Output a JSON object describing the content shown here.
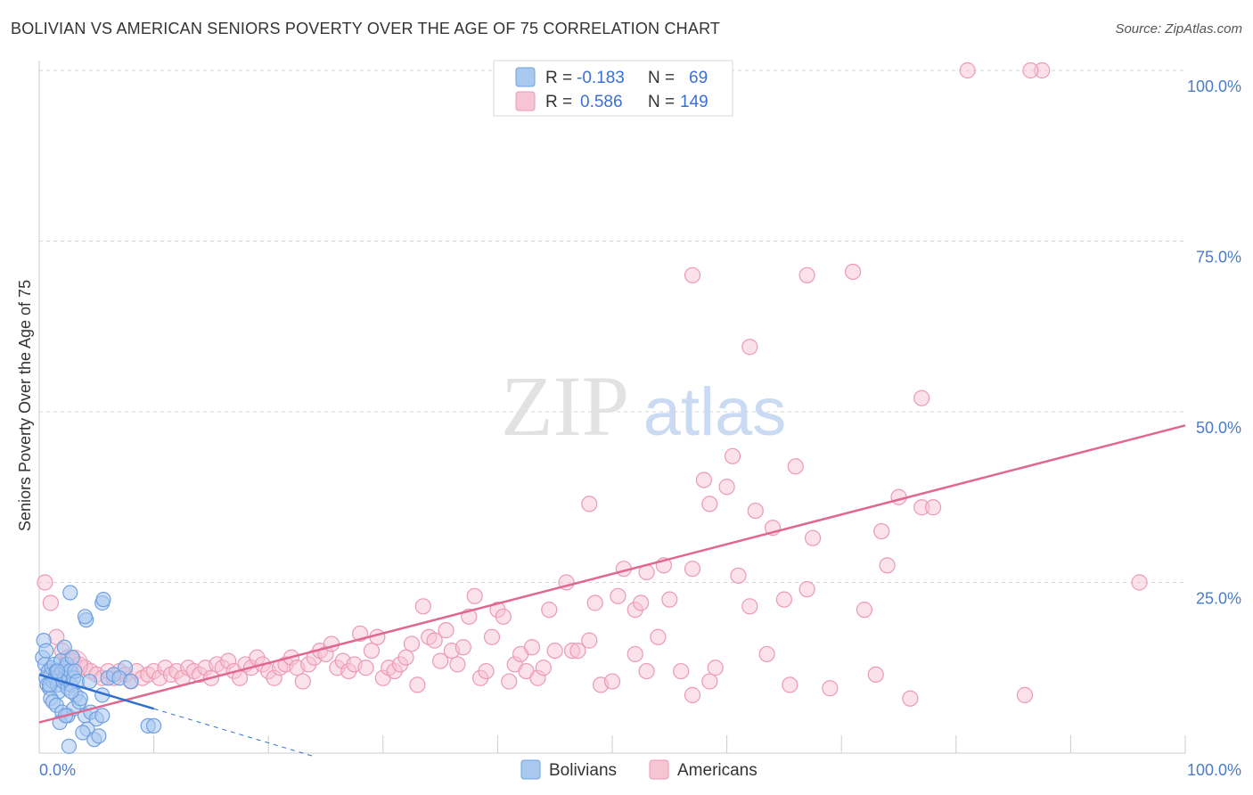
{
  "title": "BOLIVIAN VS AMERICAN SENIORS POVERTY OVER THE AGE OF 75 CORRELATION CHART",
  "source": "Source: ZipAtlas.com",
  "watermark": {
    "zip": "ZIP",
    "atlas": "atlas"
  },
  "colors": {
    "blue_fill": "#a9c8f0",
    "blue_stroke": "#6fa0e0",
    "blue_line": "#2f6fd0",
    "pink_fill": "#f7c4d4",
    "pink_stroke": "#ec9ab4",
    "pink_line": "#e06890",
    "grid": "#d5d5d5",
    "tick_text": "#4a7cc9"
  },
  "legend": {
    "rows": [
      {
        "r_label": "R =",
        "r_value": "-0.183",
        "n_label": "N =",
        "n_value": "69"
      },
      {
        "r_label": "R =",
        "r_value": "0.586",
        "n_label": "N =",
        "n_value": "149"
      }
    ]
  },
  "bottom_legend": [
    "Bolivians",
    "Americans"
  ],
  "chart_data": {
    "type": "scatter",
    "title": "BOLIVIAN VS AMERICAN SENIORS POVERTY OVER THE AGE OF 75 CORRELATION CHART",
    "xlabel": "",
    "ylabel": "Seniors Poverty Over the Age of 75",
    "xlim": [
      0,
      100
    ],
    "ylim": [
      0,
      100
    ],
    "x_tick_labels": [
      "0.0%",
      "100.0%"
    ],
    "y_tick_labels": [
      "25.0%",
      "50.0%",
      "75.0%",
      "100.0%"
    ],
    "y_ticks": [
      25,
      50,
      75,
      100
    ],
    "grid": true,
    "legend_position": "top-center",
    "series": [
      {
        "name": "Bolivians",
        "R": -0.183,
        "N": 69,
        "trend": {
          "x0": 0,
          "y0": 11.5,
          "x1": 10,
          "y1": 6.5,
          "dashed_to_x": 24,
          "dashed_to_y": -0.5
        },
        "points": [
          [
            0.3,
            14
          ],
          [
            0.5,
            13
          ],
          [
            0.6,
            11
          ],
          [
            0.7,
            10
          ],
          [
            0.8,
            12
          ],
          [
            0.9,
            9.5
          ],
          [
            1.0,
            11.5
          ],
          [
            1.1,
            12.5
          ],
          [
            1.2,
            10.5
          ],
          [
            1.3,
            13
          ],
          [
            1.4,
            11
          ],
          [
            1.5,
            12
          ],
          [
            1.6,
            10
          ],
          [
            1.7,
            9
          ],
          [
            1.8,
            11.5
          ],
          [
            1.9,
            13.5
          ],
          [
            2.0,
            12
          ],
          [
            2.1,
            10.5
          ],
          [
            2.2,
            11
          ],
          [
            2.3,
            12.5
          ],
          [
            2.4,
            13
          ],
          [
            2.5,
            9.5
          ],
          [
            2.6,
            11
          ],
          [
            2.7,
            12
          ],
          [
            2.8,
            10
          ],
          [
            2.9,
            14
          ],
          [
            3.0,
            11
          ],
          [
            3.1,
            12
          ],
          [
            3.2,
            8.5
          ],
          [
            3.3,
            10.5
          ],
          [
            0.4,
            16.5
          ],
          [
            0.6,
            15
          ],
          [
            1.0,
            8
          ],
          [
            1.2,
            7.5
          ],
          [
            1.5,
            7
          ],
          [
            2.0,
            6
          ],
          [
            2.5,
            5.5
          ],
          [
            3.0,
            6.5
          ],
          [
            3.5,
            7.5
          ],
          [
            4.0,
            5.5
          ],
          [
            4.5,
            6
          ],
          [
            5.0,
            5
          ],
          [
            4.2,
            3.5
          ],
          [
            3.8,
            3
          ],
          [
            4.8,
            2
          ],
          [
            5.2,
            2.5
          ],
          [
            2.6,
            1.0
          ],
          [
            1.8,
            4.5
          ],
          [
            2.3,
            5.5
          ],
          [
            3.6,
            8
          ],
          [
            4.4,
            10.5
          ],
          [
            5.5,
            8.5
          ],
          [
            6.0,
            11
          ],
          [
            7.5,
            12.5
          ],
          [
            6.5,
            11.5
          ],
          [
            7.0,
            11
          ],
          [
            8.0,
            10.5
          ],
          [
            5.5,
            5.5
          ],
          [
            4.1,
            19.5
          ],
          [
            4.0,
            20
          ],
          [
            2.7,
            23.5
          ],
          [
            5.5,
            22
          ],
          [
            5.6,
            22.5
          ],
          [
            9.5,
            4
          ],
          [
            10.0,
            4
          ],
          [
            2.2,
            15.5
          ],
          [
            1.6,
            12
          ],
          [
            2.8,
            9
          ],
          [
            0.9,
            10
          ]
        ]
      },
      {
        "name": "Americans",
        "R": 0.586,
        "N": 149,
        "trend": {
          "x0": 0,
          "y0": 4.5,
          "x1": 100,
          "y1": 48
        },
        "points": [
          [
            0.5,
            25
          ],
          [
            1.0,
            22
          ],
          [
            1.5,
            17
          ],
          [
            2.0,
            15
          ],
          [
            2.5,
            14
          ],
          [
            3.0,
            13.5
          ],
          [
            3.5,
            13
          ],
          [
            4.0,
            12.5
          ],
          [
            4.5,
            12
          ],
          [
            5.0,
            11.5
          ],
          [
            5.5,
            11
          ],
          [
            6.0,
            12
          ],
          [
            6.5,
            11
          ],
          [
            7.0,
            12
          ],
          [
            7.5,
            11.5
          ],
          [
            8.0,
            10.5
          ],
          [
            8.5,
            12
          ],
          [
            9.0,
            11
          ],
          [
            9.5,
            11.5
          ],
          [
            10.0,
            12
          ],
          [
            10.5,
            11
          ],
          [
            11.0,
            12.5
          ],
          [
            11.5,
            11.5
          ],
          [
            12.0,
            12
          ],
          [
            12.5,
            11
          ],
          [
            13.0,
            12.5
          ],
          [
            13.5,
            12
          ],
          [
            14.0,
            11.5
          ],
          [
            14.5,
            12.5
          ],
          [
            15.0,
            11
          ],
          [
            15.5,
            13
          ],
          [
            16.0,
            12.5
          ],
          [
            16.5,
            13.5
          ],
          [
            17.0,
            12
          ],
          [
            17.5,
            11
          ],
          [
            18.0,
            13
          ],
          [
            18.5,
            12.5
          ],
          [
            19.0,
            14
          ],
          [
            19.5,
            13
          ],
          [
            20.0,
            12
          ],
          [
            20.5,
            11
          ],
          [
            21.0,
            12.5
          ],
          [
            21.5,
            13
          ],
          [
            22.0,
            14
          ],
          [
            22.5,
            12.5
          ],
          [
            23.0,
            10.5
          ],
          [
            23.5,
            13
          ],
          [
            24.0,
            14
          ],
          [
            24.5,
            15
          ],
          [
            25.0,
            14.5
          ],
          [
            25.5,
            16
          ],
          [
            26.0,
            12.5
          ],
          [
            26.5,
            13.5
          ],
          [
            27.0,
            12
          ],
          [
            27.5,
            13
          ],
          [
            28.0,
            17.5
          ],
          [
            28.5,
            12.5
          ],
          [
            29.0,
            15
          ],
          [
            29.5,
            17
          ],
          [
            30.0,
            11
          ],
          [
            30.5,
            12.5
          ],
          [
            31.0,
            12
          ],
          [
            31.5,
            13
          ],
          [
            32.0,
            14
          ],
          [
            32.5,
            16
          ],
          [
            33.0,
            10
          ],
          [
            33.5,
            21.5
          ],
          [
            34.0,
            17
          ],
          [
            34.5,
            16.5
          ],
          [
            35.0,
            13.5
          ],
          [
            35.5,
            18
          ],
          [
            36.0,
            15
          ],
          [
            36.5,
            13
          ],
          [
            37.0,
            15.5
          ],
          [
            37.5,
            20
          ],
          [
            38.0,
            23
          ],
          [
            38.5,
            11
          ],
          [
            39.0,
            12
          ],
          [
            39.5,
            17
          ],
          [
            40.0,
            21
          ],
          [
            40.5,
            20
          ],
          [
            41.0,
            10.5
          ],
          [
            41.5,
            13
          ],
          [
            42.0,
            14.5
          ],
          [
            42.5,
            12
          ],
          [
            43.0,
            15.5
          ],
          [
            43.5,
            11
          ],
          [
            44.0,
            12.5
          ],
          [
            44.5,
            21
          ],
          [
            45.0,
            15
          ],
          [
            46.0,
            25
          ],
          [
            46.5,
            15
          ],
          [
            47.0,
            15
          ],
          [
            48.0,
            16.5
          ],
          [
            48.5,
            22
          ],
          [
            49.0,
            10
          ],
          [
            50.0,
            10.5
          ],
          [
            50.5,
            23
          ],
          [
            51.0,
            27
          ],
          [
            52.0,
            21
          ],
          [
            52.5,
            22
          ],
          [
            53.0,
            26.5
          ],
          [
            54.0,
            17
          ],
          [
            54.5,
            27.5
          ],
          [
            55.0,
            22.5
          ],
          [
            56.0,
            12
          ],
          [
            57.0,
            27
          ],
          [
            58.0,
            40
          ],
          [
            58.5,
            36.5
          ],
          [
            59.0,
            12.5
          ],
          [
            60.0,
            39
          ],
          [
            60.5,
            43.5
          ],
          [
            61.0,
            26
          ],
          [
            62.0,
            21.5
          ],
          [
            62.5,
            35.5
          ],
          [
            63.5,
            14.5
          ],
          [
            64.0,
            33
          ],
          [
            65.0,
            22.5
          ],
          [
            65.5,
            10
          ],
          [
            66.0,
            42
          ],
          [
            67.0,
            24
          ],
          [
            67.5,
            31.5
          ],
          [
            69.0,
            9.5
          ],
          [
            72.0,
            21
          ],
          [
            73.0,
            11.5
          ],
          [
            73.5,
            32.5
          ],
          [
            74.0,
            27.5
          ],
          [
            75.0,
            37.5
          ],
          [
            76.0,
            8
          ],
          [
            77.0,
            36
          ],
          [
            78.0,
            36
          ],
          [
            96.0,
            25
          ],
          [
            86.0,
            8.5
          ],
          [
            57.0,
            70
          ],
          [
            62.0,
            59.5
          ],
          [
            67.0,
            70
          ],
          [
            71.0,
            70.5
          ],
          [
            77.0,
            52
          ],
          [
            87.5,
            100
          ],
          [
            86.5,
            100
          ],
          [
            81.0,
            100
          ],
          [
            48.0,
            36.5
          ],
          [
            57.0,
            8.5
          ],
          [
            58.5,
            10.5
          ],
          [
            53.0,
            12
          ],
          [
            52.0,
            14.5
          ]
        ]
      }
    ]
  }
}
